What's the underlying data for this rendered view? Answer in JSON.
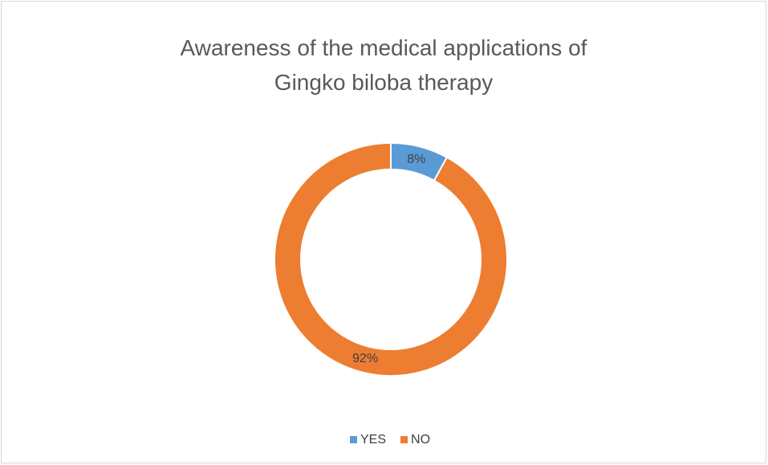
{
  "chart_data": {
    "type": "donut",
    "title": "Awareness of the medical applications of Gingko biloba therapy",
    "categories": [
      "YES",
      "NO"
    ],
    "values": [
      8,
      92
    ],
    "value_labels": [
      "8%",
      "92%"
    ],
    "colors": [
      "#5b9bd5",
      "#ed7d31"
    ],
    "legend": "bottom"
  }
}
